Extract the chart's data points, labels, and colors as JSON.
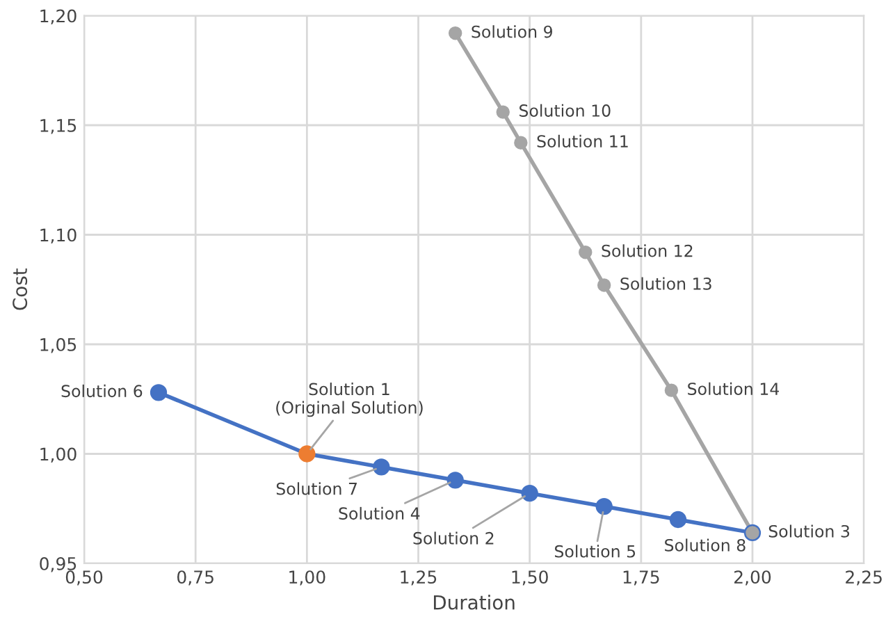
{
  "chart_data": {
    "type": "line",
    "xlabel": "Duration",
    "ylabel": "Cost",
    "xlim": [
      0.5,
      2.25
    ],
    "ylim": [
      0.95,
      1.2
    ],
    "xticks": [
      {
        "value": 0.5,
        "label": "0,50"
      },
      {
        "value": 0.75,
        "label": "0,75"
      },
      {
        "value": 1.0,
        "label": "1,00"
      },
      {
        "value": 1.25,
        "label": "1,25"
      },
      {
        "value": 1.5,
        "label": "1,50"
      },
      {
        "value": 1.75,
        "label": "1,75"
      },
      {
        "value": 2.0,
        "label": "2,00"
      },
      {
        "value": 2.25,
        "label": "2,25"
      }
    ],
    "yticks": [
      {
        "value": 0.95,
        "label": "0,95"
      },
      {
        "value": 1.0,
        "label": "1,00"
      },
      {
        "value": 1.05,
        "label": "1,05"
      },
      {
        "value": 1.1,
        "label": "1,10"
      },
      {
        "value": 1.15,
        "label": "1,15"
      },
      {
        "value": 1.2,
        "label": "1,20"
      }
    ],
    "grid": true,
    "marker": "circle",
    "line_style": "solid",
    "series": [
      {
        "color": "#4472c4",
        "colors": [
          "#4472c4",
          "#ed7d31",
          "#4472c4",
          "#4472c4",
          "#4472c4",
          "#4472c4",
          "#4472c4",
          "#4472c4"
        ],
        "x": [
          0.667,
          1.0,
          1.167,
          1.333,
          1.5,
          1.667,
          1.833,
          2.0
        ],
        "values": [
          1.028,
          1.0,
          0.994,
          0.988,
          0.982,
          0.976,
          0.97,
          0.964
        ]
      },
      {
        "color": "#a5a5a5",
        "x": [
          1.333,
          1.44,
          1.48,
          1.625,
          1.667,
          1.818,
          2.0
        ],
        "values": [
          1.192,
          1.156,
          1.142,
          1.092,
          1.077,
          1.029,
          0.964
        ]
      }
    ],
    "annotations": [
      {
        "text": "Solution 9",
        "x": 1.333,
        "y": 1.192
      },
      {
        "text": "Solution 10",
        "x": 1.44,
        "y": 1.156
      },
      {
        "text": "Solution 11",
        "x": 1.48,
        "y": 1.142
      },
      {
        "text": "Solution 12",
        "x": 1.625,
        "y": 1.092
      },
      {
        "text": "Solution 13",
        "x": 1.667,
        "y": 1.077
      },
      {
        "text": "Solution 14",
        "x": 1.818,
        "y": 1.029
      },
      {
        "text": "Solution 3",
        "x": 2.0,
        "y": 0.964
      },
      {
        "text": "Solution 6",
        "x": 0.667,
        "y": 1.028
      },
      {
        "text": "Solution 1\n(Original Solution)",
        "x": 1.0,
        "y": 1.0
      },
      {
        "text": "Solution 7",
        "x": 1.167,
        "y": 0.994
      },
      {
        "text": "Solution 4",
        "x": 1.333,
        "y": 0.988
      },
      {
        "text": "Solution 2",
        "x": 1.5,
        "y": 0.982
      },
      {
        "text": "Solution 5",
        "x": 1.667,
        "y": 0.976
      },
      {
        "text": "Solution 8",
        "x": 1.833,
        "y": 0.97
      }
    ]
  }
}
